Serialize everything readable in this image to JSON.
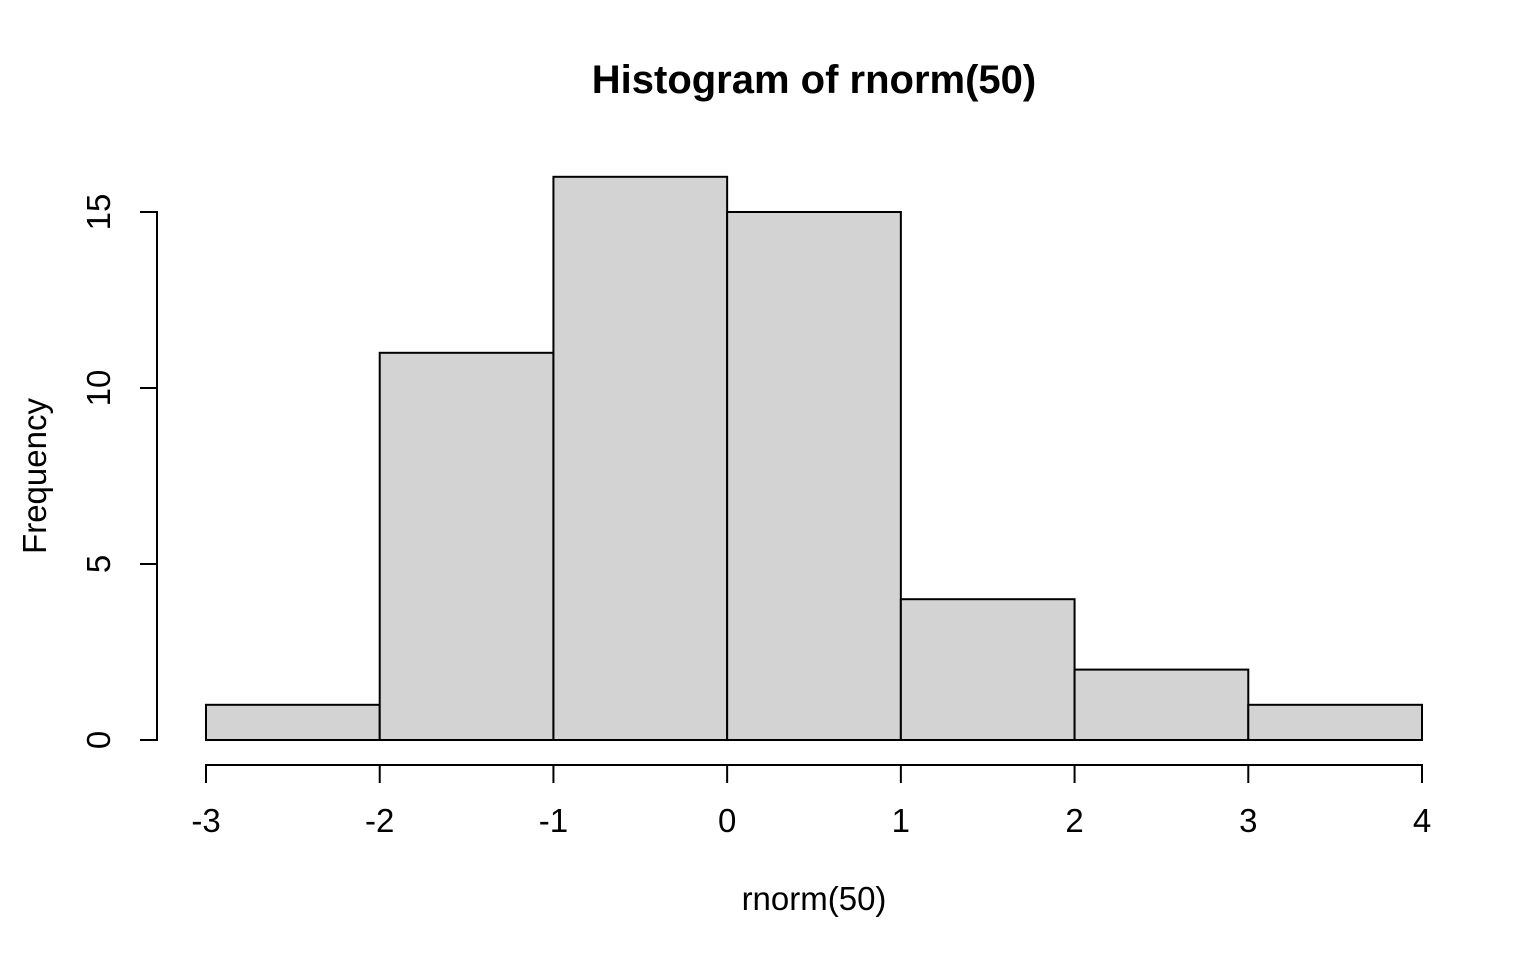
{
  "chart_data": {
    "type": "bar",
    "variant": "histogram",
    "title": "Histogram of rnorm(50)",
    "xlabel": "rnorm(50)",
    "ylabel": "Frequency",
    "bin_edges": [
      -3,
      -2,
      -1,
      0,
      1,
      2,
      3,
      4
    ],
    "counts": [
      1,
      11,
      16,
      15,
      4,
      2,
      1
    ],
    "x_tick_labels": [
      "-3",
      "-2",
      "-1",
      "0",
      "1",
      "2",
      "3",
      "4"
    ],
    "x_tick_values": [
      -3,
      -2,
      -1,
      0,
      1,
      2,
      3,
      4
    ],
    "y_tick_labels": [
      "0",
      "5",
      "10",
      "15"
    ],
    "y_tick_values": [
      0,
      5,
      10,
      15
    ],
    "xlim": [
      -3,
      4
    ],
    "ylim": [
      0,
      16
    ],
    "grid": false,
    "legend": "none",
    "colors": {
      "bar_fill": "#d3d3d3",
      "bar_stroke": "#000000",
      "axis": "#000000",
      "text": "#000000",
      "background": "#ffffff"
    }
  }
}
